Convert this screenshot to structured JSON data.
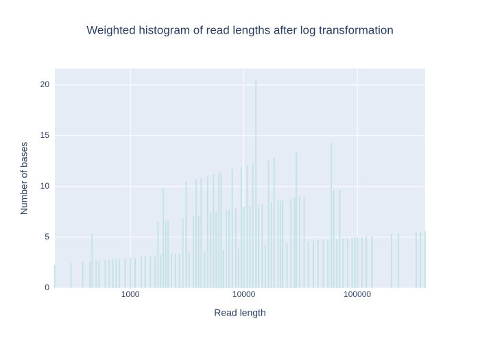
{
  "chart_data": {
    "type": "bar",
    "title": "Weighted histogram of read lengths after log transformation",
    "x_label": "Read length",
    "y_label": "Number of bases",
    "x_log": true,
    "grid": true,
    "color": "#bfe0e2",
    "xlim": [
      216,
      396000
    ],
    "ylim": [
      0,
      21.6
    ],
    "xticks": [
      1000,
      10000,
      100000
    ],
    "yticks": [
      0,
      5,
      10,
      15,
      20
    ],
    "x": [
      215,
      300,
      380,
      440,
      460,
      500,
      530,
      600,
      650,
      700,
      750,
      800,
      900,
      1000,
      1100,
      1250,
      1350,
      1500,
      1650,
      1750,
      1850,
      1950,
      2050,
      2150,
      2300,
      2500,
      2700,
      2900,
      3100,
      3300,
      3600,
      3800,
      4000,
      4200,
      4500,
      4800,
      5100,
      5400,
      5700,
      6000,
      6300,
      6600,
      7000,
      7400,
      7900,
      8500,
      9000,
      9500,
      10000,
      10700,
      11300,
      12000,
      12800,
      13500,
      14500,
      15500,
      16500,
      17500,
      18500,
      20000,
      21000,
      22000,
      24000,
      26000,
      28000,
      29000,
      31000,
      34000,
      37000,
      41000,
      45000,
      50000,
      55000,
      59000,
      62000,
      66000,
      70000,
      75000,
      82000,
      90000,
      95000,
      100000,
      110000,
      120000,
      135000,
      200000,
      230000,
      330000,
      360000,
      396000
    ],
    "values": [
      2.3,
      2.5,
      2.6,
      2.6,
      5.3,
      2.7,
      2.7,
      2.8,
      2.8,
      2.8,
      2.9,
      2.9,
      2.9,
      3.0,
      3.0,
      3.1,
      3.1,
      3.2,
      3.2,
      6.5,
      3.3,
      9.8,
      6.6,
      6.7,
      3.4,
      3.4,
      3.4,
      6.9,
      10.5,
      3.5,
      7.1,
      10.7,
      7.1,
      10.8,
      3.6,
      11.0,
      7.4,
      11.2,
      7.5,
      11.3,
      11.4,
      3.8,
      7.7,
      7.7,
      11.7,
      7.9,
      3.9,
      11.9,
      8.0,
      12.1,
      8.1,
      12.2,
      20.5,
      8.2,
      8.3,
      4.2,
      12.6,
      8.5,
      12.8,
      8.6,
      8.6,
      8.7,
      4.4,
      8.8,
      8.9,
      13.4,
      9.0,
      9.0,
      4.6,
      4.6,
      4.7,
      4.7,
      4.7,
      14.3,
      9.6,
      4.8,
      9.7,
      4.9,
      4.9,
      4.9,
      5.0,
      5.0,
      5.0,
      5.1,
      5.1,
      5.3,
      5.4,
      5.5,
      5.5,
      5.6
    ]
  }
}
